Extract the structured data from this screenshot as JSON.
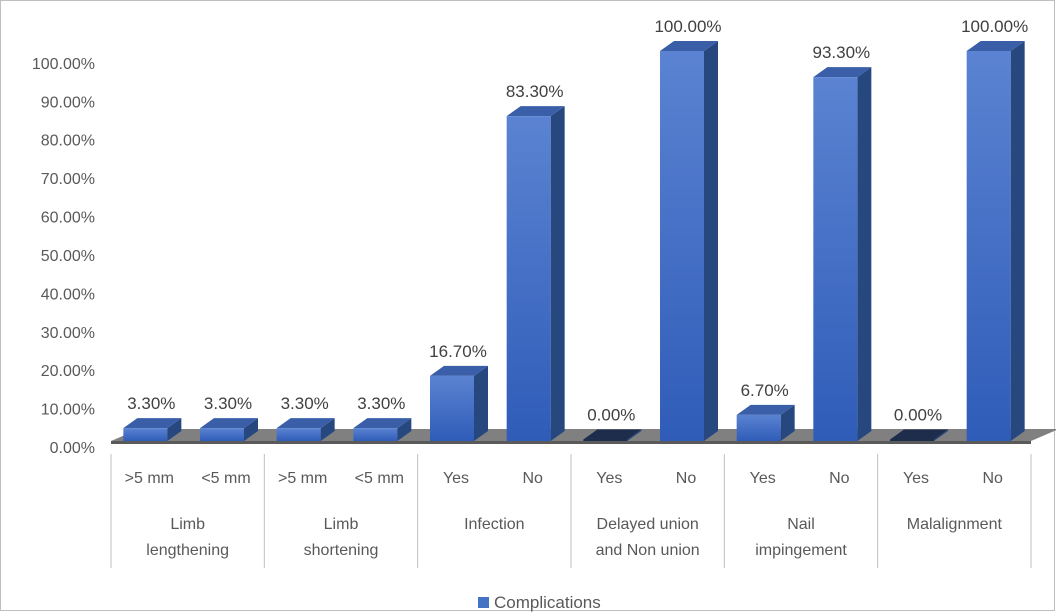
{
  "chart_data": {
    "type": "bar",
    "subtype": "3d-column",
    "title": "",
    "xlabel": "",
    "ylabel": "",
    "ylim": [
      0,
      100
    ],
    "y_ticks": [
      "0.00%",
      "10.00%",
      "20.00%",
      "30.00%",
      "40.00%",
      "50.00%",
      "60.00%",
      "70.00%",
      "80.00%",
      "90.00%",
      "100.00%"
    ],
    "groups": [
      {
        "label": "Limb lengthening",
        "label_lines": [
          "Limb",
          "lengthening"
        ],
        "categories": [
          ">5 mm",
          "<5 mm"
        ]
      },
      {
        "label": "Limb shortening",
        "label_lines": [
          "Limb",
          "shortening"
        ],
        "categories": [
          ">5 mm",
          "<5 mm"
        ]
      },
      {
        "label": "Infection",
        "label_lines": [
          "Infection"
        ],
        "categories": [
          "Yes",
          "No"
        ]
      },
      {
        "label": "Delayed union and Non union",
        "label_lines": [
          "Delayed union",
          "and Non union"
        ],
        "categories": [
          "Yes",
          "No"
        ]
      },
      {
        "label": "Nail impingement",
        "label_lines": [
          "Nail",
          "impingement"
        ],
        "categories": [
          "Yes",
          "No"
        ]
      },
      {
        "label": "Malalignment",
        "label_lines": [
          "Malalignment"
        ],
        "categories": [
          "Yes",
          "No"
        ]
      }
    ],
    "series": [
      {
        "name": "Complications",
        "color": "#4472c4",
        "values": [
          3.3,
          3.3,
          3.3,
          3.3,
          16.7,
          83.3,
          0.0,
          100.0,
          6.7,
          93.3,
          0.0,
          100.0
        ],
        "data_labels": [
          "3.30%",
          "3.30%",
          "3.30%",
          "3.30%",
          "16.70%",
          "83.30%",
          "0.00%",
          "100.00%",
          "6.70%",
          "93.30%",
          "0.00%",
          "100.00%"
        ]
      }
    ],
    "legend": {
      "position": "bottom",
      "entries": [
        "Complications"
      ]
    },
    "grid": false
  }
}
